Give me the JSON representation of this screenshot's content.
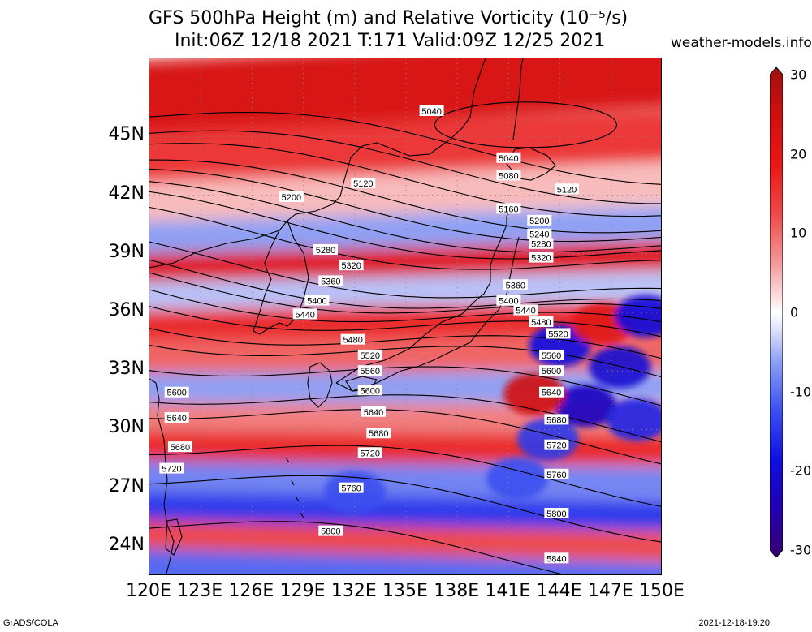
{
  "title": {
    "line1": "GFS 500hPa Height (m) and Relative Vorticity (10⁻⁵/s)",
    "line2": "Init:06Z 12/18 2021 T:171 Valid:09Z 12/25 2021"
  },
  "site": "weather-models.info",
  "footer": {
    "left": "GrADS/COLA",
    "right": "2021-12-18-19:20"
  },
  "map": {
    "lon_range": [
      120,
      150
    ],
    "lat_range": [
      22.5,
      49
    ],
    "lat_ticks": [
      {
        "value": 45,
        "label": "45N"
      },
      {
        "value": 42,
        "label": "42N"
      },
      {
        "value": 39,
        "label": "39N"
      },
      {
        "value": 36,
        "label": "36N"
      },
      {
        "value": 33,
        "label": "33N"
      },
      {
        "value": 30,
        "label": "30N"
      },
      {
        "value": 27,
        "label": "27N"
      },
      {
        "value": 24,
        "label": "24N"
      }
    ],
    "lon_ticks": [
      {
        "value": 120,
        "label": "120E"
      },
      {
        "value": 123,
        "label": "123E"
      },
      {
        "value": 126,
        "label": "126E"
      },
      {
        "value": 129,
        "label": "129E"
      },
      {
        "value": 132,
        "label": "132E"
      },
      {
        "value": 135,
        "label": "135E"
      },
      {
        "value": 138,
        "label": "138E"
      },
      {
        "value": 141,
        "label": "141E"
      },
      {
        "value": 144,
        "label": "144E"
      },
      {
        "value": 147,
        "label": "147E"
      },
      {
        "value": 150,
        "label": "150E"
      }
    ],
    "vorticity_bands": [
      {
        "lat": 47.5,
        "value": 22
      },
      {
        "lat": 44.5,
        "value": 14
      },
      {
        "lat": 42.2,
        "value": 4
      },
      {
        "lat": 40.3,
        "value": -6
      },
      {
        "lat": 38.8,
        "value": 20
      },
      {
        "lat": 37.3,
        "value": -4
      },
      {
        "lat": 35.8,
        "value": 16
      },
      {
        "lat": 34.0,
        "value": 10
      },
      {
        "lat": 32.3,
        "value": -6
      },
      {
        "lat": 30.8,
        "value": 8
      },
      {
        "lat": 29.3,
        "value": 16
      },
      {
        "lat": 27.6,
        "value": -8
      },
      {
        "lat": 26.0,
        "value": -14
      },
      {
        "lat": 24.5,
        "value": 12
      },
      {
        "lat": 23.0,
        "value": -10
      }
    ],
    "vorticity_blobs": [
      {
        "lon": 145.5,
        "lat": 31.2,
        "value": -22
      },
      {
        "lon": 147.5,
        "lat": 33.2,
        "value": -20
      },
      {
        "lon": 144.0,
        "lat": 34.3,
        "value": -18
      },
      {
        "lon": 148.5,
        "lat": 30.5,
        "value": -16
      },
      {
        "lon": 142.5,
        "lat": 31.8,
        "value": 24
      },
      {
        "lon": 146.5,
        "lat": 35.4,
        "value": 20
      },
      {
        "lon": 143.3,
        "lat": 29.5,
        "value": -14
      },
      {
        "lon": 149.0,
        "lat": 35.8,
        "value": -18
      },
      {
        "lon": 141.5,
        "lat": 27.5,
        "value": -12
      },
      {
        "lon": 132.0,
        "lat": 26.8,
        "value": -12
      }
    ],
    "height_contours": [
      {
        "value": 5040,
        "label_lon": 146.0,
        "label_lat": 44.2
      },
      {
        "value": 5080,
        "label_lon": 146.0,
        "label_lat": 43.1
      },
      {
        "value": 5120,
        "label_lon": 148.0,
        "label_lat": 42.3
      },
      {
        "value": 5160,
        "label_lon": 146.0,
        "label_lat": 41.3
      },
      {
        "value": 5200,
        "label_lon": 147.0,
        "label_lat": 40.7
      },
      {
        "value": 5240,
        "label_lon": 147.0,
        "label_lat": 40.0
      },
      {
        "value": 5280,
        "label_lon": 148.0,
        "label_lat": 39.5
      },
      {
        "value": 5320,
        "label_lon": 148.0,
        "label_lat": 38.8
      },
      {
        "value": 5360,
        "label_lon": 145.5,
        "label_lat": 37.2
      },
      {
        "value": 5400,
        "label_lon": 145.0,
        "label_lat": 36.5
      },
      {
        "value": 5440,
        "label_lon": 146.0,
        "label_lat": 36.1
      },
      {
        "value": 5480,
        "label_lon": 146.5,
        "label_lat": 35.5
      },
      {
        "value": 5520,
        "label_lon": 147.5,
        "label_lat": 34.9
      },
      {
        "value": 5560,
        "label_lon": 147.0,
        "label_lat": 34.0
      },
      {
        "value": 5600,
        "label_lon": 146.5,
        "label_lat": 33.3
      },
      {
        "value": 5640,
        "label_lon": 147.0,
        "label_lat": 32.1
      },
      {
        "value": 5680,
        "label_lon": 147.0,
        "label_lat": 30.5
      },
      {
        "value": 5720,
        "label_lon": 147.0,
        "label_lat": 29.6
      },
      {
        "value": 5760,
        "label_lon": 146.0,
        "label_lat": 27.6
      },
      {
        "value": 5800,
        "label_lon": 145.5,
        "label_lat": 25.9
      },
      {
        "value": 5840,
        "label_lon": 146.0,
        "label_lat": 23.4
      }
    ],
    "contour_labels": [
      {
        "text": "5040",
        "lon": 136.5,
        "lat": 46.3
      },
      {
        "text": "5040",
        "lon": 141.0,
        "lat": 43.9
      },
      {
        "text": "5080",
        "lon": 141.0,
        "lat": 43.0
      },
      {
        "text": "5120",
        "lon": 132.5,
        "lat": 42.6
      },
      {
        "text": "5120",
        "lon": 144.4,
        "lat": 42.3
      },
      {
        "text": "5200",
        "lon": 128.3,
        "lat": 41.9
      },
      {
        "text": "5160",
        "lon": 141.0,
        "lat": 41.3
      },
      {
        "text": "5200",
        "lon": 142.8,
        "lat": 40.7
      },
      {
        "text": "5240",
        "lon": 142.8,
        "lat": 40.0
      },
      {
        "text": "5280",
        "lon": 142.9,
        "lat": 39.5
      },
      {
        "text": "5280",
        "lon": 130.3,
        "lat": 39.2
      },
      {
        "text": "5320",
        "lon": 142.9,
        "lat": 38.8
      },
      {
        "text": "5320",
        "lon": 131.8,
        "lat": 38.4
      },
      {
        "text": "5360",
        "lon": 130.6,
        "lat": 37.6
      },
      {
        "text": "5360",
        "lon": 141.4,
        "lat": 37.4
      },
      {
        "text": "5400",
        "lon": 141.0,
        "lat": 36.6
      },
      {
        "text": "5400",
        "lon": 129.8,
        "lat": 36.6
      },
      {
        "text": "5440",
        "lon": 142.0,
        "lat": 36.1
      },
      {
        "text": "5440",
        "lon": 129.1,
        "lat": 35.9
      },
      {
        "text": "5480",
        "lon": 142.9,
        "lat": 35.5
      },
      {
        "text": "5480",
        "lon": 131.9,
        "lat": 34.6
      },
      {
        "text": "5520",
        "lon": 143.9,
        "lat": 34.9
      },
      {
        "text": "5520",
        "lon": 132.9,
        "lat": 33.8
      },
      {
        "text": "5560",
        "lon": 143.5,
        "lat": 33.8
      },
      {
        "text": "5560",
        "lon": 132.9,
        "lat": 33.0
      },
      {
        "text": "5600",
        "lon": 143.5,
        "lat": 33.0
      },
      {
        "text": "5600",
        "lon": 121.6,
        "lat": 31.9
      },
      {
        "text": "5600",
        "lon": 132.9,
        "lat": 32.0
      },
      {
        "text": "5640",
        "lon": 143.5,
        "lat": 31.9
      },
      {
        "text": "5640",
        "lon": 121.6,
        "lat": 30.6
      },
      {
        "text": "5640",
        "lon": 133.1,
        "lat": 30.9
      },
      {
        "text": "5680",
        "lon": 143.8,
        "lat": 30.5
      },
      {
        "text": "5680",
        "lon": 133.4,
        "lat": 29.8
      },
      {
        "text": "5680",
        "lon": 121.8,
        "lat": 29.1
      },
      {
        "text": "5720",
        "lon": 143.8,
        "lat": 29.2
      },
      {
        "text": "5720",
        "lon": 132.9,
        "lat": 28.8
      },
      {
        "text": "5720",
        "lon": 121.3,
        "lat": 28.0
      },
      {
        "text": "5760",
        "lon": 143.8,
        "lat": 27.7
      },
      {
        "text": "5760",
        "lon": 131.8,
        "lat": 27.0
      },
      {
        "text": "5800",
        "lon": 143.8,
        "lat": 25.7
      },
      {
        "text": "5800",
        "lon": 130.6,
        "lat": 24.8
      },
      {
        "text": "5840",
        "lon": 143.8,
        "lat": 23.4
      }
    ]
  },
  "colorbar": {
    "min": -30,
    "max": 30,
    "ticks": [
      {
        "value": 30,
        "label": "30"
      },
      {
        "value": 20,
        "label": "20"
      },
      {
        "value": 10,
        "label": "10"
      },
      {
        "value": 0,
        "label": "0"
      },
      {
        "value": -10,
        "label": "-10"
      },
      {
        "value": -20,
        "label": "-20"
      },
      {
        "value": -30,
        "label": "-30"
      }
    ],
    "stops": [
      {
        "value": -30,
        "color": "#3a0070"
      },
      {
        "value": -24,
        "color": "#2000b0"
      },
      {
        "value": -18,
        "color": "#1010e0"
      },
      {
        "value": -12,
        "color": "#3c50f0"
      },
      {
        "value": -6,
        "color": "#8ea0f4"
      },
      {
        "value": -2,
        "color": "#dfe4fb"
      },
      {
        "value": 0,
        "color": "#ffffff"
      },
      {
        "value": 2,
        "color": "#fbdcdc"
      },
      {
        "value": 6,
        "color": "#f49a9a"
      },
      {
        "value": 12,
        "color": "#ee4a4a"
      },
      {
        "value": 18,
        "color": "#e81818"
      },
      {
        "value": 24,
        "color": "#d01010"
      },
      {
        "value": 30,
        "color": "#a01010"
      }
    ]
  }
}
